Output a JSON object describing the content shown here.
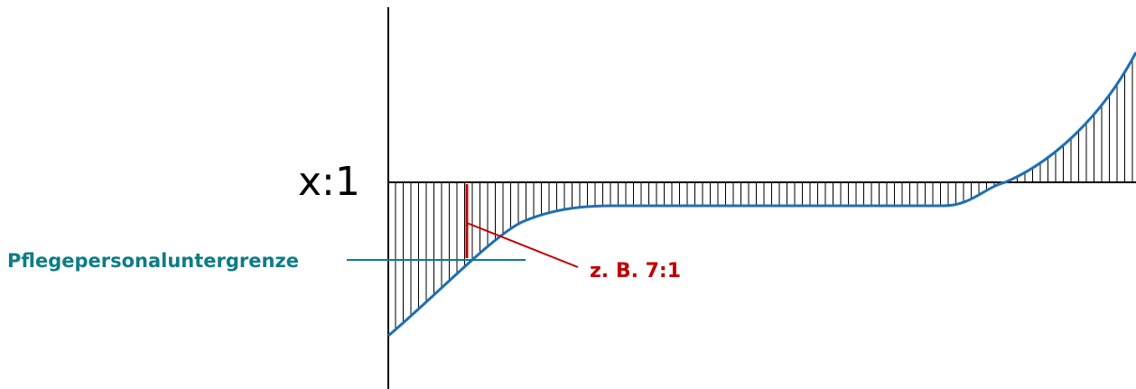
{
  "diagram": {
    "baseline_label": "x:1",
    "lower_limit_label": "Pflegepersonaluntergrenze",
    "example_label": "z. B. 7:1"
  },
  "colors": {
    "curve": "#1f6fb4",
    "axis": "#000000",
    "hatch": "#000000",
    "lower_limit": "#0e7c86",
    "example": "#c00000"
  }
}
